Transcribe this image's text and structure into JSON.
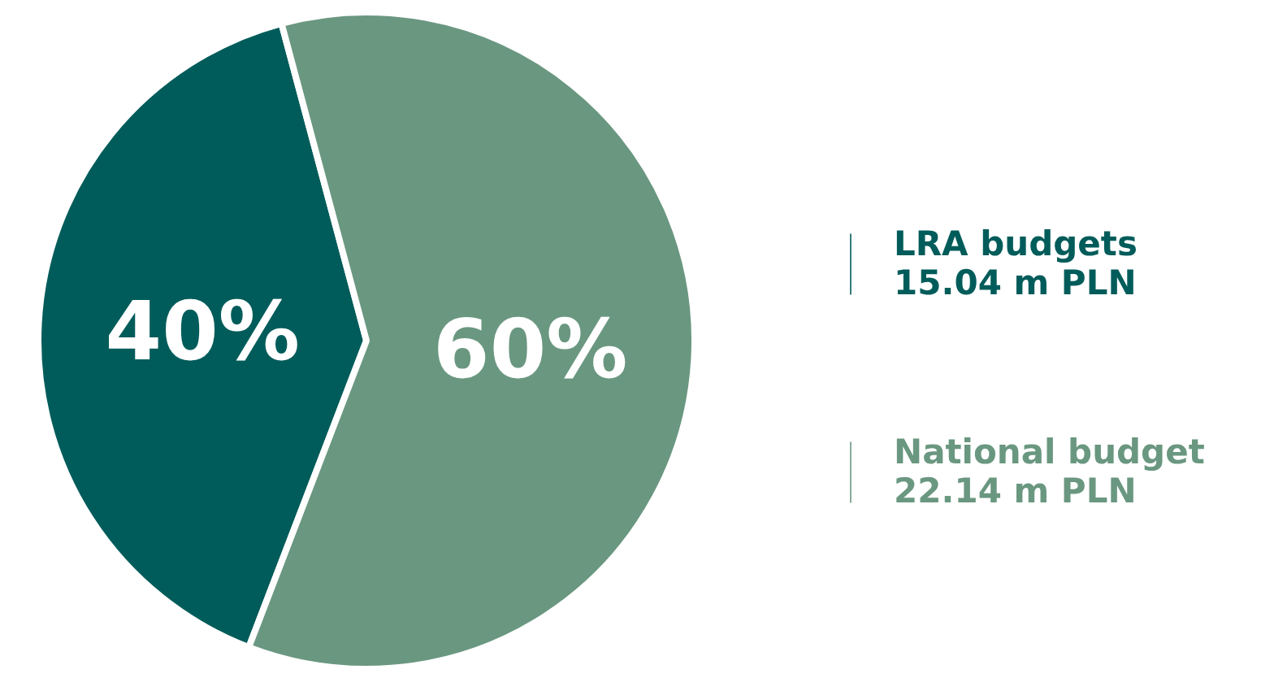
{
  "chart_data": {
    "type": "pie",
    "categories": [
      "LRA budgets",
      "National budget"
    ],
    "values": [
      40,
      60
    ],
    "value_labels": [
      "40%",
      "60%"
    ],
    "colors": [
      "#005c5a",
      "#6a9780"
    ],
    "annotations": [
      "15.04 m PLN",
      "22.14 m PLN"
    ],
    "legend": "right"
  }
}
